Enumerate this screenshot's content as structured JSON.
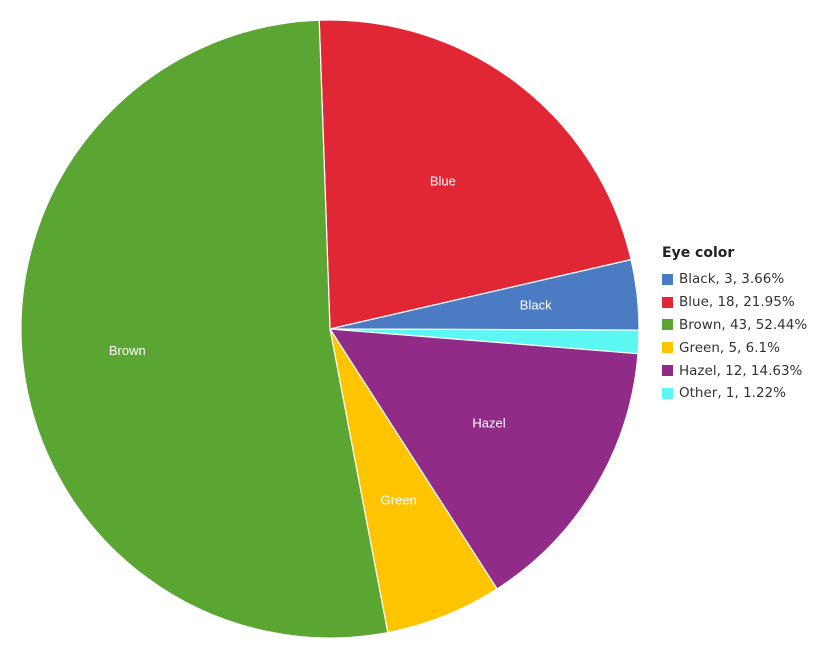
{
  "chart_data": {
    "type": "pie",
    "legend_title": "Eye color",
    "legend_position": "right",
    "slices": [
      {
        "name": "Black",
        "value": 3,
        "percent": 3.66,
        "color": "#4b7bc2",
        "legend": "Black, 3, 3.66%",
        "label": "Black"
      },
      {
        "name": "Blue",
        "value": 18,
        "percent": 21.95,
        "color": "#e12735",
        "legend": "Blue, 18, 21.95%",
        "label": "Blue"
      },
      {
        "name": "Brown",
        "value": 43,
        "percent": 52.44,
        "color": "#5ba532",
        "legend": "Brown, 43, 52.44%",
        "label": "Brown"
      },
      {
        "name": "Green",
        "value": 5,
        "percent": 6.1,
        "color": "#ffc400",
        "legend": "Green, 5, 6.1%",
        "label": "Green"
      },
      {
        "name": "Hazel",
        "value": 12,
        "percent": 14.63,
        "color": "#902b88",
        "legend": "Hazel, 12, 14.63%",
        "label": "Hazel"
      },
      {
        "name": "Other",
        "value": 1,
        "percent": 1.22,
        "color": "#5cf7f3",
        "legend": "Other, 1, 1.22%",
        "label": ""
      }
    ]
  }
}
